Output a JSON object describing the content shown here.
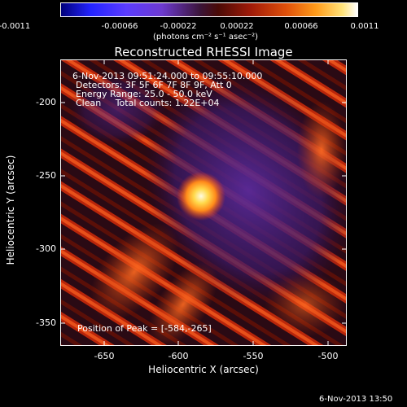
{
  "colorbar": {
    "ticks": [
      "-0.0011",
      "-0.00066",
      "-0.00022",
      "0.00022",
      "0.00066",
      "0.0011"
    ],
    "unit_label": "(photons cm⁻² s⁻¹ asec⁻²)"
  },
  "plot": {
    "title": "Reconstructed RHESSI Image",
    "xlabel": "Heliocentric X (arcsec)",
    "ylabel": "Heliocentric Y (arcsec)",
    "x_ticks": [
      "-650",
      "-600",
      "-550",
      "-500"
    ],
    "y_ticks": [
      "-200",
      "-250",
      "-300",
      "-350"
    ],
    "info": {
      "time_range": "6-Nov-2013 09:51:24.000 to 09:55:10.000",
      "detectors": "Detectors: 3F 5F 6F 7F 8F 9F, Att 0",
      "energy": "Energy Range: 25.0 - 50.0 keV",
      "clean": "Clean     Total counts: 1.22E+04"
    },
    "peak": "Position of Peak = [-584,-265]"
  },
  "timestamp": "6-Nov-2013 13:50"
}
